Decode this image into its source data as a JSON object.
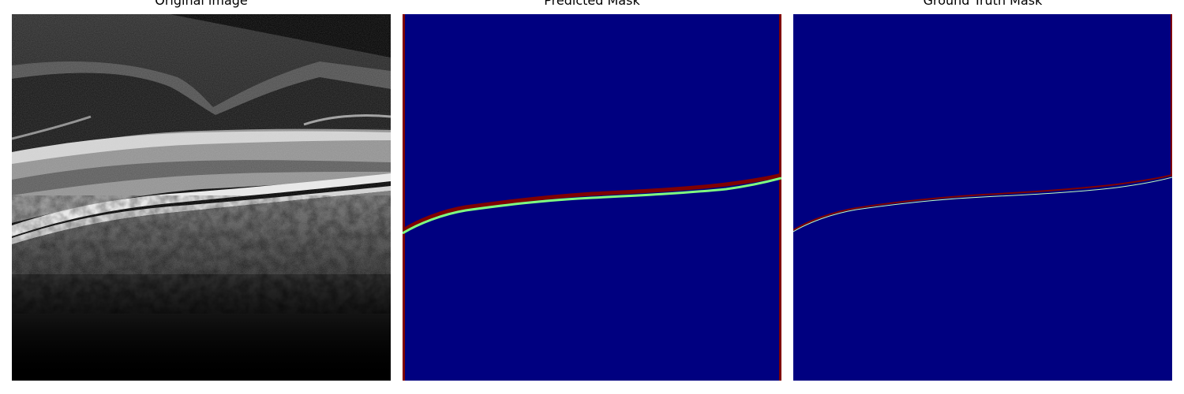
{
  "panels": [
    {
      "title": "Original image"
    },
    {
      "title": "Predicted Mask"
    },
    {
      "title": "Ground Truth Mask"
    }
  ],
  "colors": {
    "background": "#000080",
    "upper_boundary": "#7f0000",
    "lower_boundary": "#7fff7f",
    "frame_edge": "#7f0000"
  }
}
